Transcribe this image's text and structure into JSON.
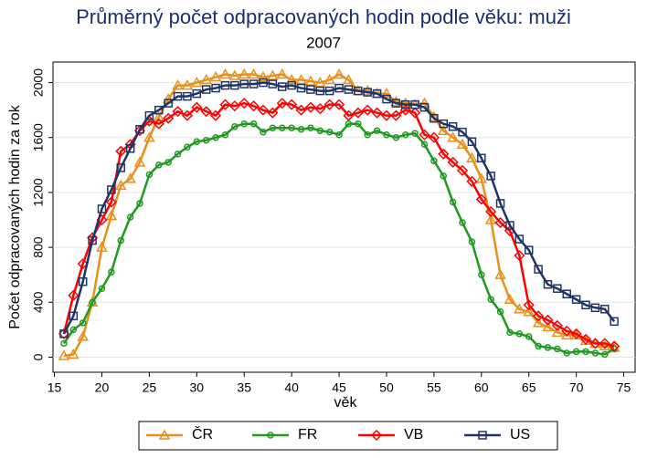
{
  "chart_data": {
    "type": "line",
    "title": "Průměrný počet odpracovaných hodin podle věku: muži",
    "subtitle": "2007",
    "x_label": "věk",
    "y_label": "Počet odpracovaných hodin za rok",
    "x": [
      16,
      17,
      18,
      19,
      20,
      21,
      22,
      23,
      24,
      25,
      26,
      27,
      28,
      29,
      30,
      31,
      32,
      33,
      34,
      35,
      36,
      37,
      38,
      39,
      40,
      41,
      42,
      43,
      44,
      45,
      46,
      47,
      48,
      49,
      50,
      51,
      52,
      53,
      54,
      55,
      56,
      57,
      58,
      59,
      60,
      61,
      62,
      63,
      64,
      65,
      66,
      67,
      68,
      69,
      70,
      71,
      72,
      73,
      74
    ],
    "xlim": [
      14.85,
      76.2
    ],
    "xticks": [
      15,
      20,
      25,
      30,
      35,
      40,
      45,
      50,
      55,
      60,
      65,
      70,
      75
    ],
    "ylim": [
      -110,
      2150
    ],
    "yticks": [
      0,
      400,
      800,
      1200,
      1600,
      2000
    ],
    "grid": true,
    "legend": "bottom",
    "series": [
      {
        "name": "ČR",
        "color": "#e8901a",
        "marker": "triangle",
        "values": [
          10,
          20,
          150,
          400,
          800,
          1030,
          1250,
          1300,
          1420,
          1600,
          1750,
          1880,
          1980,
          1980,
          2000,
          2020,
          2040,
          2060,
          2050,
          2060,
          2060,
          2040,
          2050,
          2060,
          2020,
          2020,
          2010,
          2000,
          2020,
          2060,
          2020,
          1940,
          1940,
          1920,
          1920,
          1860,
          1850,
          1840,
          1850,
          1750,
          1650,
          1600,
          1550,
          1450,
          1300,
          1000,
          600,
          420,
          350,
          330,
          250,
          220,
          180,
          160,
          160,
          120,
          100,
          80,
          70
        ]
      },
      {
        "name": "FR",
        "color": "#1f9a1f",
        "marker": "circle",
        "values": [
          100,
          200,
          250,
          400,
          500,
          620,
          850,
          1020,
          1120,
          1330,
          1400,
          1420,
          1480,
          1530,
          1570,
          1580,
          1600,
          1620,
          1680,
          1700,
          1700,
          1640,
          1670,
          1670,
          1670,
          1660,
          1670,
          1650,
          1640,
          1620,
          1700,
          1700,
          1620,
          1650,
          1620,
          1600,
          1620,
          1630,
          1550,
          1430,
          1320,
          1130,
          980,
          840,
          600,
          420,
          330,
          180,
          170,
          150,
          80,
          70,
          60,
          30,
          40,
          40,
          30,
          20,
          60
        ]
      },
      {
        "name": "VB",
        "color": "#ff0000",
        "marker": "diamond",
        "values": [
          170,
          450,
          680,
          870,
          1000,
          1130,
          1500,
          1550,
          1650,
          1720,
          1700,
          1740,
          1790,
          1760,
          1820,
          1790,
          1760,
          1840,
          1830,
          1850,
          1830,
          1800,
          1780,
          1850,
          1840,
          1800,
          1820,
          1810,
          1840,
          1840,
          1760,
          1780,
          1800,
          1780,
          1760,
          1760,
          1800,
          1780,
          1620,
          1600,
          1480,
          1420,
          1360,
          1280,
          1150,
          1060,
          980,
          920,
          740,
          380,
          300,
          270,
          230,
          190,
          170,
          130,
          100,
          100,
          80
        ]
      },
      {
        "name": "US",
        "color": "#1f3566",
        "marker": "square",
        "values": [
          170,
          300,
          550,
          850,
          1080,
          1220,
          1380,
          1520,
          1660,
          1760,
          1800,
          1850,
          1900,
          1900,
          1920,
          1950,
          1960,
          1980,
          1980,
          1990,
          1990,
          2000,
          1990,
          1970,
          1980,
          1960,
          1950,
          1940,
          1940,
          1960,
          1950,
          1940,
          1930,
          1920,
          1880,
          1850,
          1840,
          1840,
          1820,
          1740,
          1700,
          1680,
          1640,
          1570,
          1450,
          1320,
          1120,
          960,
          860,
          780,
          640,
          530,
          500,
          460,
          420,
          380,
          360,
          350,
          260
        ]
      }
    ]
  }
}
